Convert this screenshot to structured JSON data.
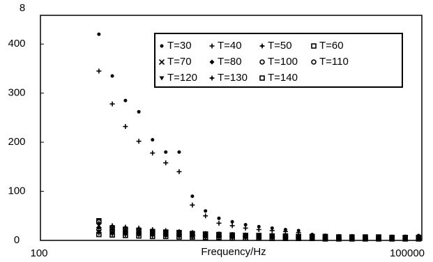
{
  "chart_data": {
    "type": "scatter",
    "ylabel": "8",
    "xlabel": "Frequency/Hz",
    "xscale": "log",
    "xlim": [
      100,
      100000
    ],
    "xticks": [
      100,
      100000
    ],
    "ylim": [
      0,
      450
    ],
    "yticks": [
      0,
      100,
      200,
      300,
      400
    ],
    "x": [
      290,
      370,
      470,
      600,
      770,
      980,
      1250,
      1590,
      2020,
      2580,
      3290,
      4190,
      5340,
      6800,
      8670,
      11000,
      14100,
      17900,
      22900,
      29100,
      37100,
      47300,
      60300,
      76800,
      97900
    ],
    "series": [
      {
        "name": "T=30",
        "marker": "dot",
        "color": "#000",
        "values": [
          420,
          335,
          285,
          262,
          205,
          180,
          180,
          90,
          60,
          45,
          38,
          32,
          28,
          25,
          22,
          20,
          12,
          10,
          9,
          9,
          8,
          8,
          8,
          8,
          10
        ]
      },
      {
        "name": "T=40",
        "marker": "plus",
        "color": "#000",
        "values": [
          345,
          278,
          232,
          202,
          178,
          158,
          140,
          72,
          50,
          35,
          30,
          25,
          22,
          20,
          18,
          16,
          10,
          9,
          8,
          8,
          7,
          7,
          7,
          7,
          8
        ]
      },
      {
        "name": "T=50",
        "marker": "star",
        "color": "#000",
        "values": [
          35,
          30,
          27,
          25,
          22,
          20,
          18,
          16,
          14,
          13,
          12,
          11,
          10,
          10,
          9,
          9,
          8,
          8,
          7,
          7,
          7,
          7,
          6,
          6,
          7
        ]
      },
      {
        "name": "T=60",
        "marker": "square",
        "color": "#000",
        "values": [
          40,
          25,
          22,
          20,
          18,
          17,
          16,
          14,
          13,
          12,
          11,
          10,
          10,
          9,
          9,
          8,
          8,
          8,
          7,
          7,
          7,
          7,
          6,
          6,
          6
        ]
      },
      {
        "name": "T=70",
        "marker": "x",
        "color": "#000",
        "values": [
          30,
          24,
          21,
          19,
          17,
          16,
          15,
          13,
          12,
          11,
          10,
          10,
          9,
          9,
          8,
          8,
          7,
          7,
          7,
          6,
          6,
          6,
          6,
          5,
          6
        ]
      },
      {
        "name": "T=80",
        "marker": "diamond",
        "color": "#000",
        "values": [
          26,
          22,
          19,
          17,
          16,
          15,
          14,
          12,
          11,
          10,
          10,
          9,
          9,
          8,
          8,
          7,
          7,
          7,
          6,
          6,
          6,
          5,
          5,
          5,
          5
        ]
      },
      {
        "name": "T=100",
        "marker": "ring",
        "color": "#000",
        "values": [
          38,
          20,
          17,
          15,
          14,
          13,
          12,
          11,
          10,
          9,
          9,
          8,
          8,
          7,
          7,
          7,
          6,
          6,
          6,
          5,
          5,
          5,
          5,
          5,
          5
        ]
      },
      {
        "name": "T=110",
        "marker": "ring",
        "color": "#000",
        "values": [
          22,
          18,
          15,
          14,
          13,
          12,
          11,
          10,
          9,
          9,
          8,
          8,
          7,
          7,
          6,
          6,
          6,
          5,
          5,
          5,
          5,
          4,
          4,
          4,
          4
        ]
      },
      {
        "name": "T=120",
        "marker": "tri",
        "color": "#000",
        "values": [
          18,
          15,
          13,
          12,
          11,
          10,
          10,
          9,
          8,
          8,
          7,
          7,
          6,
          6,
          6,
          5,
          5,
          5,
          4,
          4,
          4,
          4,
          4,
          4,
          4
        ]
      },
      {
        "name": "T=130",
        "marker": "star",
        "color": "#000",
        "values": [
          15,
          13,
          12,
          11,
          10,
          9,
          9,
          8,
          7,
          7,
          6,
          6,
          6,
          5,
          5,
          5,
          4,
          4,
          4,
          4,
          3,
          3,
          3,
          3,
          3
        ]
      },
      {
        "name": "T=140",
        "marker": "square",
        "color": "#000",
        "values": [
          12,
          11,
          10,
          9,
          8,
          8,
          7,
          7,
          6,
          6,
          5,
          5,
          5,
          4,
          4,
          4,
          4,
          3,
          3,
          3,
          3,
          3,
          3,
          3,
          3
        ]
      }
    ]
  }
}
